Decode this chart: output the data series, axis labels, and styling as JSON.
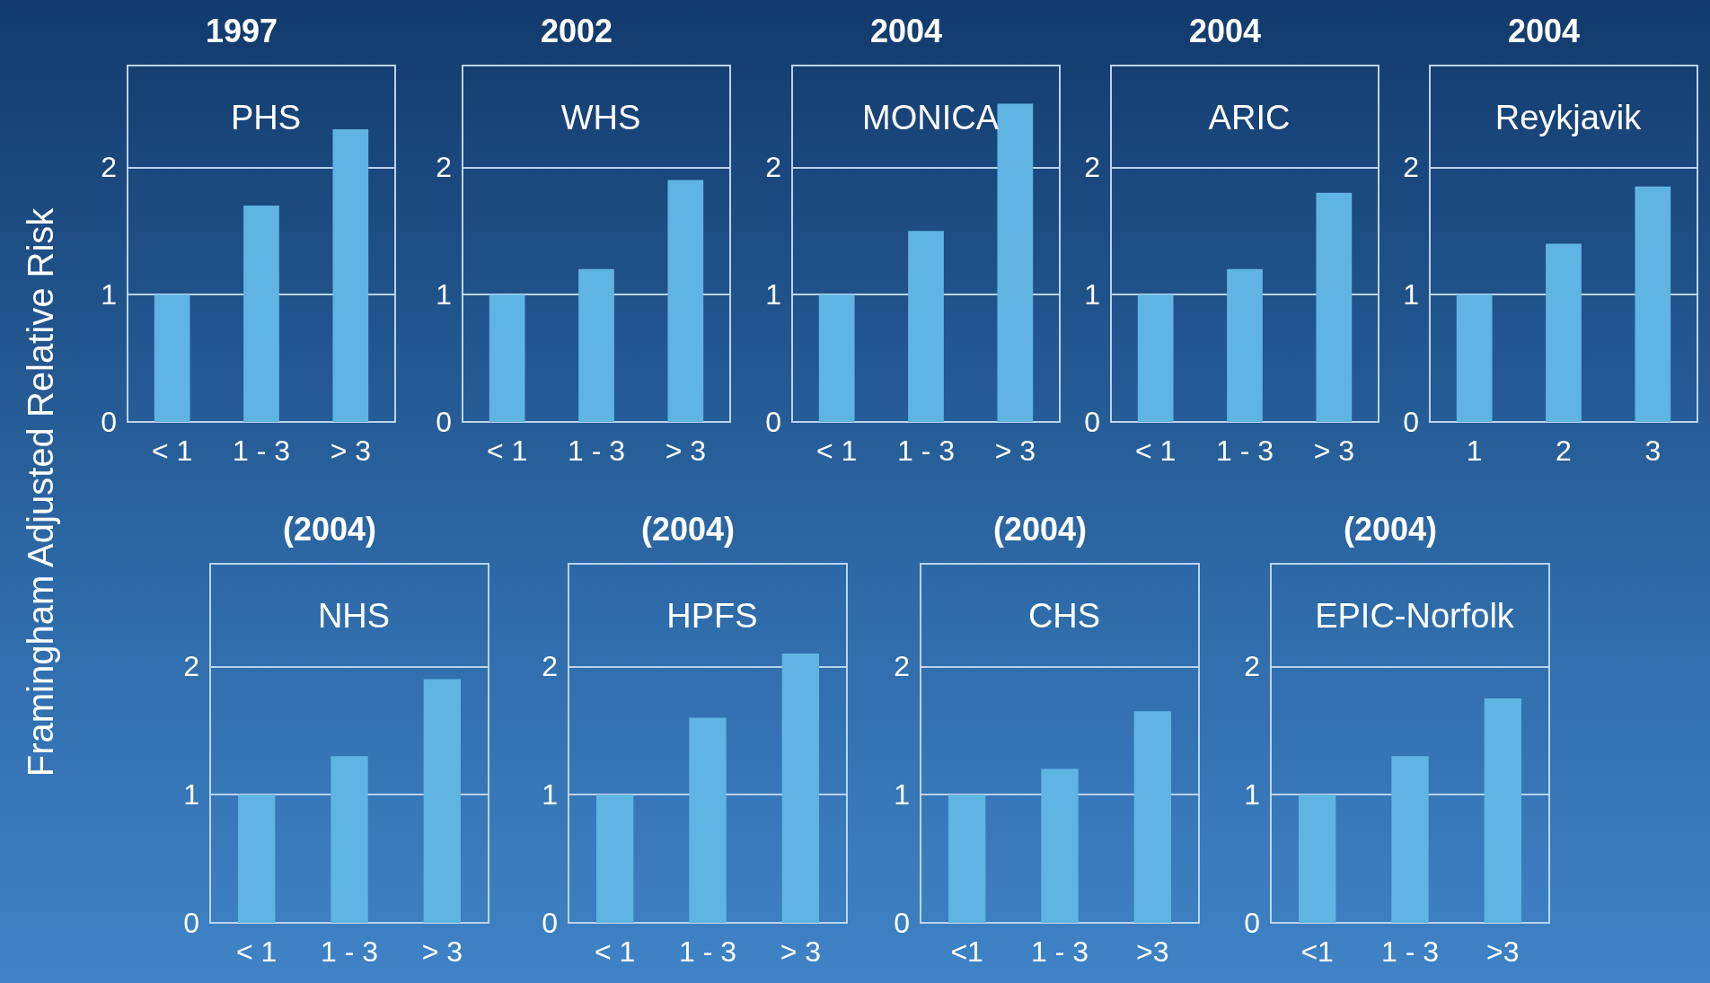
{
  "chart_data": [
    {
      "type": "bar",
      "title": "1997",
      "subtitle": "PHS",
      "ylabel": "Framingham Adjusted Relative Risk",
      "categories": [
        "< 1",
        "1 - 3",
        "> 3"
      ],
      "values": [
        1.0,
        1.7,
        2.3
      ],
      "color": "#5fb4e2",
      "ylim": [
        0,
        2.8
      ],
      "yticks": [
        0,
        1,
        2
      ],
      "grid": "y"
    },
    {
      "type": "bar",
      "title": "2002",
      "subtitle": "WHS",
      "categories": [
        "< 1",
        "1 - 3",
        "> 3"
      ],
      "values": [
        1.0,
        1.2,
        1.9
      ],
      "color": "#5fb4e2",
      "ylim": [
        0,
        2.8
      ],
      "yticks": [
        0,
        1,
        2
      ],
      "grid": "y"
    },
    {
      "type": "bar",
      "title": "2004",
      "subtitle": "MONICA",
      "categories": [
        "< 1",
        "1 - 3",
        "> 3"
      ],
      "values": [
        1.0,
        1.5,
        2.5
      ],
      "color": "#5fb4e2",
      "ylim": [
        0,
        2.8
      ],
      "yticks": [
        0,
        1,
        2
      ],
      "grid": "y"
    },
    {
      "type": "bar",
      "title": "2004",
      "subtitle": "ARIC",
      "categories": [
        "< 1",
        "1 - 3",
        "> 3"
      ],
      "values": [
        1.0,
        1.2,
        1.8
      ],
      "color": "#5fb4e2",
      "ylim": [
        0,
        2.8
      ],
      "yticks": [
        0,
        1,
        2
      ],
      "grid": "y"
    },
    {
      "type": "bar",
      "title": "2004",
      "subtitle": "Reykjavik",
      "categories": [
        "1",
        "2",
        "3"
      ],
      "values": [
        1.0,
        1.4,
        1.85
      ],
      "color": "#5fb4e2",
      "ylim": [
        0,
        2.8
      ],
      "yticks": [
        0,
        1,
        2
      ],
      "grid": "y"
    },
    {
      "type": "bar",
      "title": "(2004)",
      "subtitle": "NHS",
      "categories": [
        "< 1",
        "1 - 3",
        "> 3"
      ],
      "values": [
        1.0,
        1.3,
        1.9
      ],
      "color": "#5fb4e2",
      "ylim": [
        0,
        2.8
      ],
      "yticks": [
        0,
        1,
        2
      ],
      "grid": "y"
    },
    {
      "type": "bar",
      "title": "(2004)",
      "subtitle": "HPFS",
      "categories": [
        "< 1",
        "1 - 3",
        "> 3"
      ],
      "values": [
        1.0,
        1.6,
        2.1
      ],
      "color": "#5fb4e2",
      "ylim": [
        0,
        2.8
      ],
      "yticks": [
        0,
        1,
        2
      ],
      "grid": "y"
    },
    {
      "type": "bar",
      "title": "(2004)",
      "subtitle": "CHS",
      "categories": [
        "<1",
        "1 - 3",
        ">3"
      ],
      "values": [
        1.0,
        1.2,
        1.65
      ],
      "color": "#5fb4e2",
      "ylim": [
        0,
        2.8
      ],
      "yticks": [
        0,
        1,
        2
      ],
      "grid": "y"
    },
    {
      "type": "bar",
      "title": "(2004)",
      "subtitle": "EPIC-Norfolk",
      "categories": [
        "<1",
        "1 - 3",
        ">3"
      ],
      "values": [
        1.0,
        1.3,
        1.75
      ],
      "color": "#5fb4e2",
      "ylim": [
        0,
        2.8
      ],
      "yticks": [
        0,
        1,
        2
      ],
      "grid": "y"
    }
  ]
}
